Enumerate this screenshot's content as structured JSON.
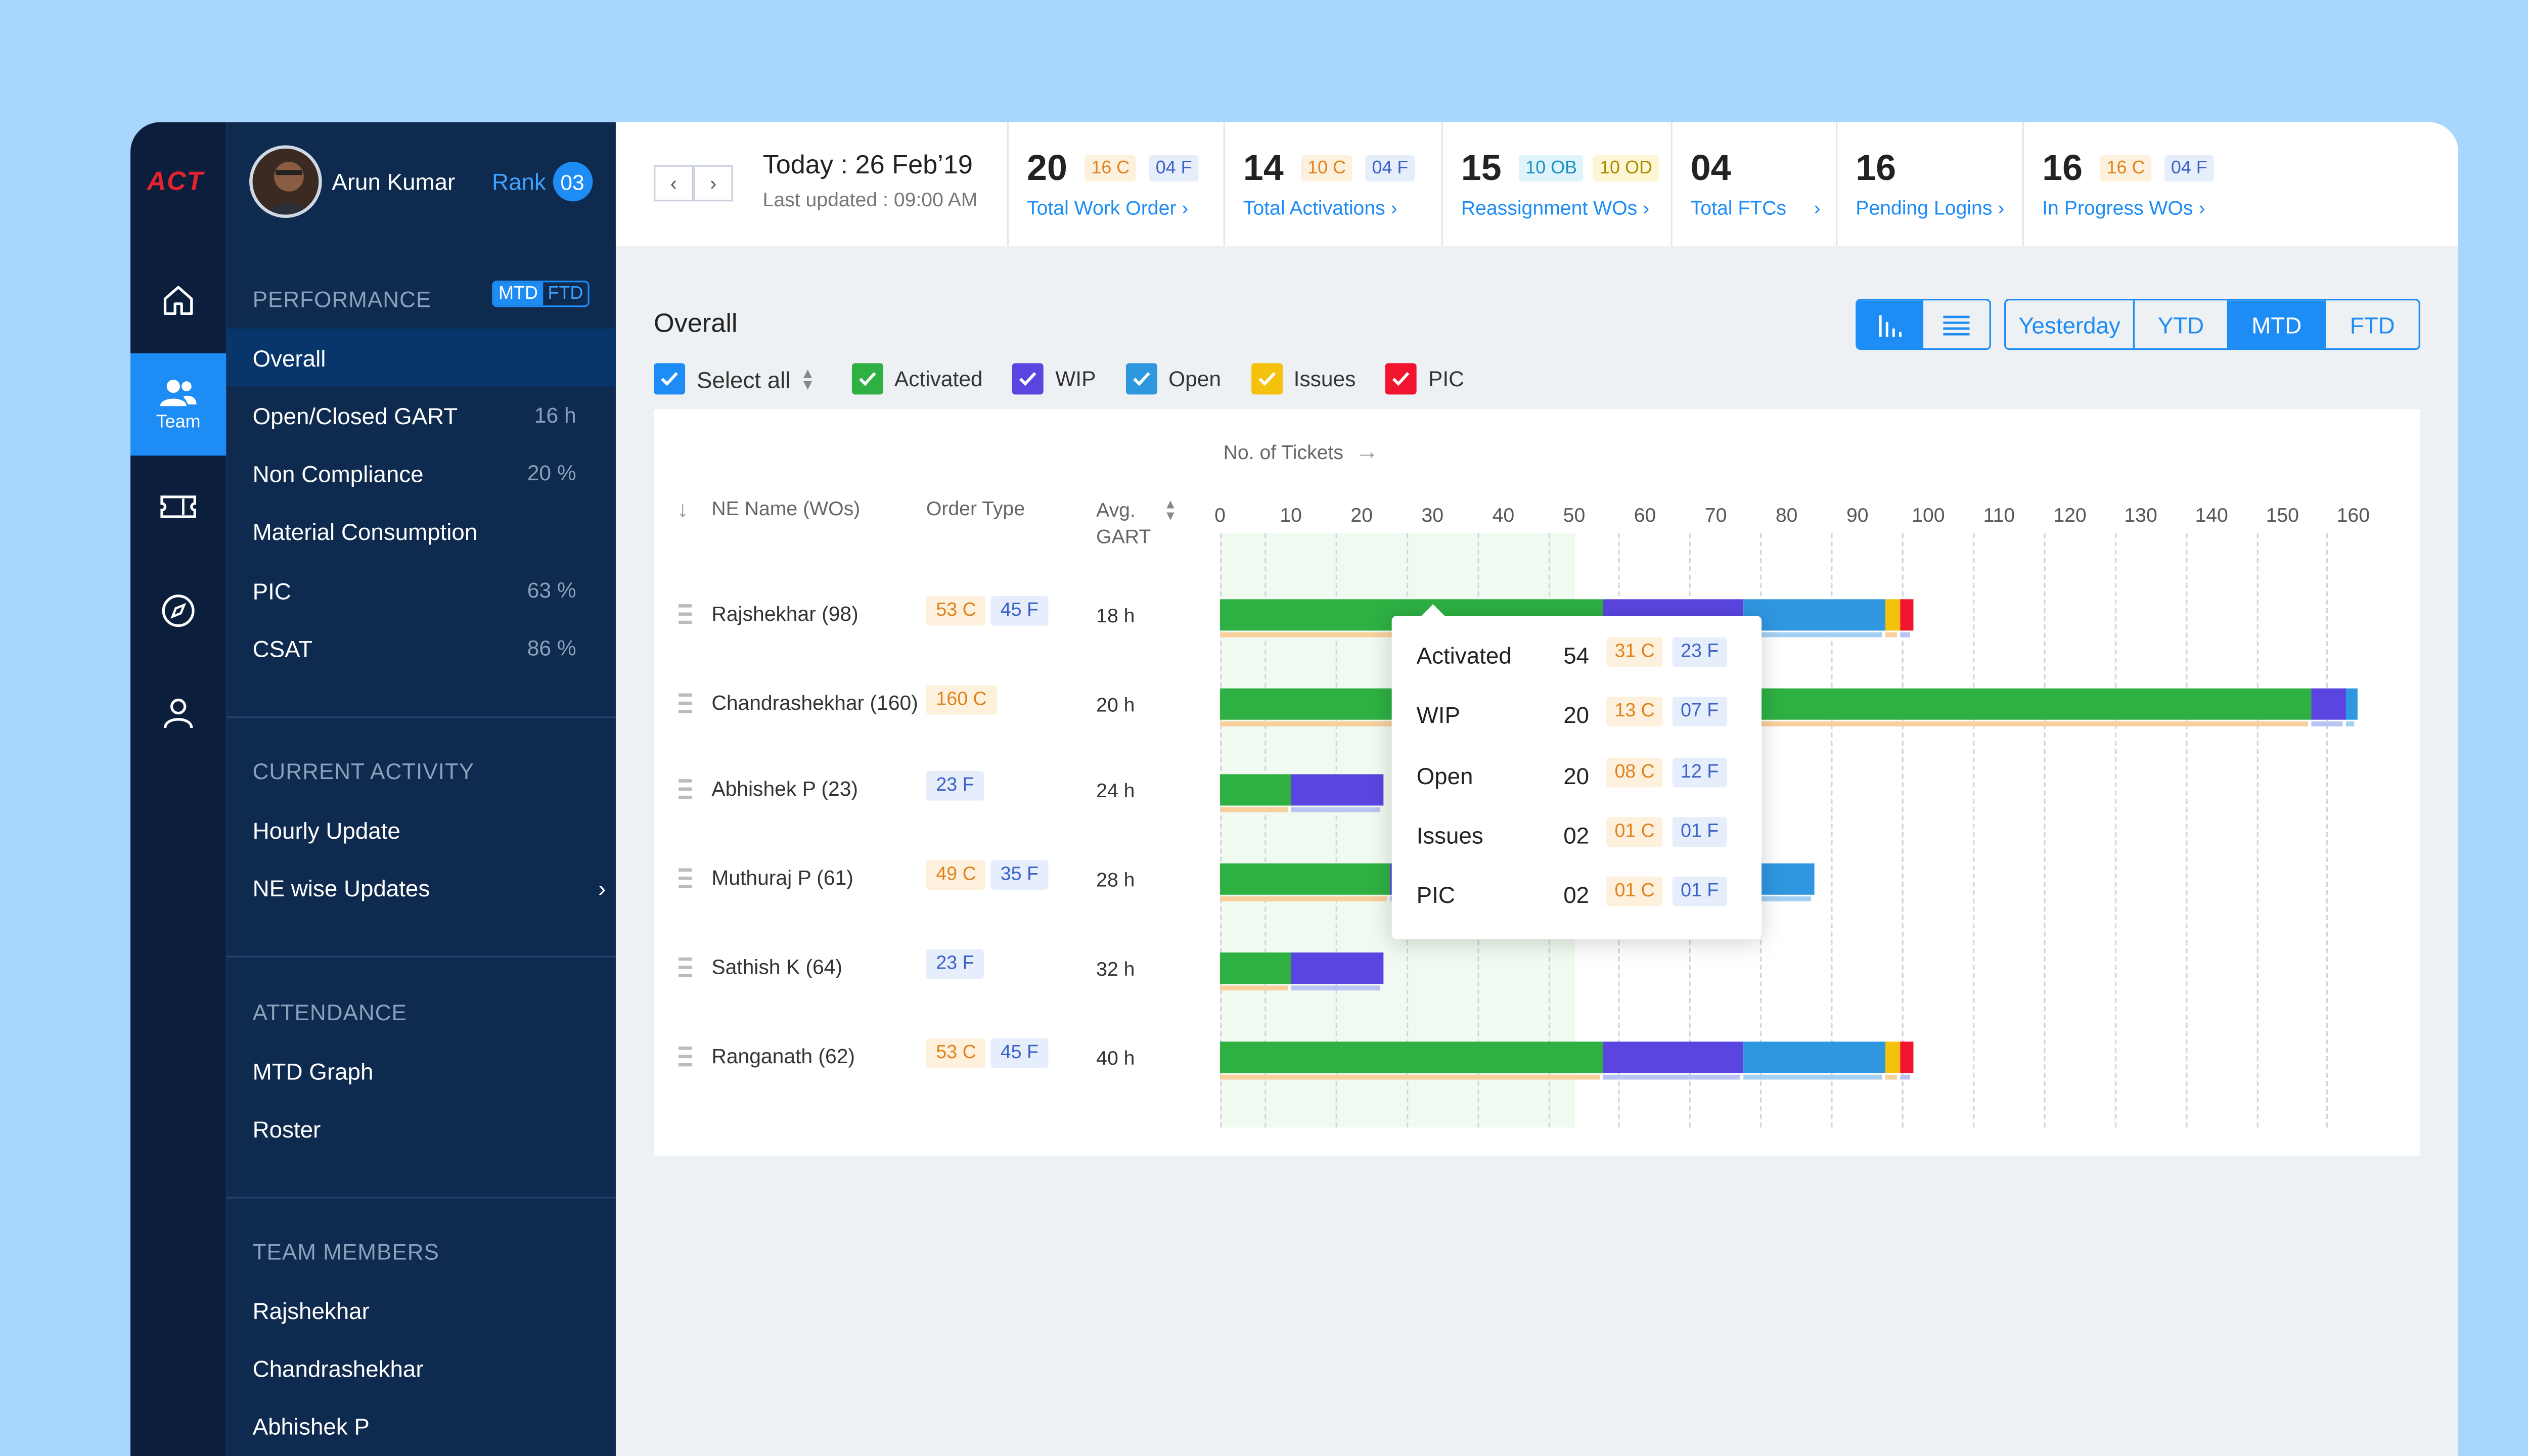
{
  "app": {
    "logo": "ACT"
  },
  "user": {
    "name": "Arun Kumar",
    "rank_label": "Rank",
    "rank_value": "03"
  },
  "rail": {
    "team_label": "Team"
  },
  "sidebar": {
    "performance": {
      "title": "PERFORMANCE",
      "toggle": [
        "MTD",
        "FTD"
      ],
      "items": [
        {
          "label": "Overall",
          "value": ""
        },
        {
          "label": "Open/Closed GART",
          "value": "16 h"
        },
        {
          "label": "Non Compliance",
          "value": "20 %"
        },
        {
          "label": "Material Consumption",
          "value": ""
        },
        {
          "label": "PIC",
          "value": "63 %"
        },
        {
          "label": "CSAT",
          "value": "86 %"
        }
      ]
    },
    "current_activity": {
      "title": "CURRENT ACTIVITY",
      "items": [
        {
          "label": "Hourly Update"
        },
        {
          "label": "NE wise Updates"
        }
      ]
    },
    "attendance": {
      "title": "ATTENDANCE",
      "items": [
        {
          "label": "MTD Graph"
        },
        {
          "label": "Roster"
        }
      ]
    },
    "team_members": {
      "title": "TEAM MEMBERS",
      "items": [
        {
          "label": "Rajshekhar"
        },
        {
          "label": "Chandrashekhar"
        },
        {
          "label": "Abhishek P"
        }
      ]
    }
  },
  "header": {
    "today": "Today : 26 Feb’19",
    "updated": "Last updated : 09:00 AM",
    "stats": [
      {
        "num": "20",
        "chips": [
          "16 C",
          "04 F"
        ],
        "link": "Total Work Order"
      },
      {
        "num": "14",
        "chips": [
          "10 C",
          "04 F"
        ],
        "link": "Total Activations"
      },
      {
        "num": "15",
        "chips": [
          "10 OB",
          "10 OD"
        ],
        "link": "Reassignment WOs"
      },
      {
        "num": "04",
        "chips": [],
        "link": "Total FTCs"
      },
      {
        "num": "16",
        "chips": [],
        "link": "Pending Logins"
      },
      {
        "num": "16",
        "chips": [
          "16 C",
          "04 F"
        ],
        "link": "In Progress WOs"
      }
    ]
  },
  "main": {
    "title": "Overall",
    "periods": [
      "Yesterday",
      "YTD",
      "MTD",
      "FTD"
    ],
    "active_period": "MTD",
    "legend": {
      "select_all": "Select all",
      "items": [
        "Activated",
        "WIP",
        "Open",
        "Issues",
        "PIC"
      ]
    },
    "columns": {
      "name": "NE Name (WOs)",
      "order_type": "Order Type",
      "gart_1": "Avg.",
      "gart_2": "GART",
      "axis": "No. of Tickets"
    }
  },
  "colors": {
    "activated": "#2eb043",
    "wip": "#5b45e0",
    "open": "#2f97e0",
    "issues": "#f4c20d",
    "pic": "#f0142f",
    "accent": "#1d8cf5"
  },
  "chart_data": {
    "type": "bar",
    "stacked": true,
    "xlabel": "No. of Tickets",
    "xlim": [
      0,
      160
    ],
    "ticks": [
      0,
      10,
      20,
      30,
      40,
      50,
      60,
      70,
      80,
      90,
      100,
      110,
      120,
      130,
      140,
      150,
      160
    ],
    "rows": [
      {
        "name": "Rajshekhar (98)",
        "chips": [
          "53 C",
          "45 F"
        ],
        "gart": "18 h",
        "segments": {
          "activated": 54,
          "wip": 20,
          "open": 20,
          "issues": 2,
          "pic": 2
        }
      },
      {
        "name": "Chandrashekhar (160)",
        "chips": [
          "160 C"
        ],
        "gart": "20 h",
        "segments": {
          "activated": 154,
          "wip": 5,
          "open": 1.5,
          "issues": 0,
          "pic": 0
        }
      },
      {
        "name": "Abhishek P (23)",
        "chips": [
          "23 F"
        ],
        "gart": "24 h",
        "segments": {
          "activated": 10,
          "wip": 13,
          "open": 0,
          "issues": 0,
          "pic": 0
        }
      },
      {
        "name": "Muthuraj P (61)",
        "chips": [
          "49 C",
          "35 F"
        ],
        "gart": "28 h",
        "segments": {
          "activated": 24,
          "wip": 20,
          "open": 40,
          "issues": 0,
          "pic": 0
        }
      },
      {
        "name": "Sathish K (64)",
        "chips": [
          "23 F"
        ],
        "gart": "32 h",
        "segments": {
          "activated": 10,
          "wip": 13,
          "open": 0,
          "issues": 0,
          "pic": 0
        }
      },
      {
        "name": "Ranganath (62)",
        "chips": [
          "53 C",
          "45 F"
        ],
        "gart": "40 h",
        "segments": {
          "activated": 54,
          "wip": 20,
          "open": 20,
          "issues": 2,
          "pic": 2
        }
      }
    ]
  },
  "tooltip": {
    "rows": [
      {
        "label": "Activated",
        "value": "54",
        "c": "31 C",
        "f": "23 F"
      },
      {
        "label": "WIP",
        "value": "20",
        "c": "13 C",
        "f": "07 F"
      },
      {
        "label": "Open",
        "value": "20",
        "c": "08 C",
        "f": "12 F"
      },
      {
        "label": "Issues",
        "value": "02",
        "c": "01 C",
        "f": "01 F"
      },
      {
        "label": "PIC",
        "value": "02",
        "c": "01 C",
        "f": "01 F"
      }
    ]
  }
}
